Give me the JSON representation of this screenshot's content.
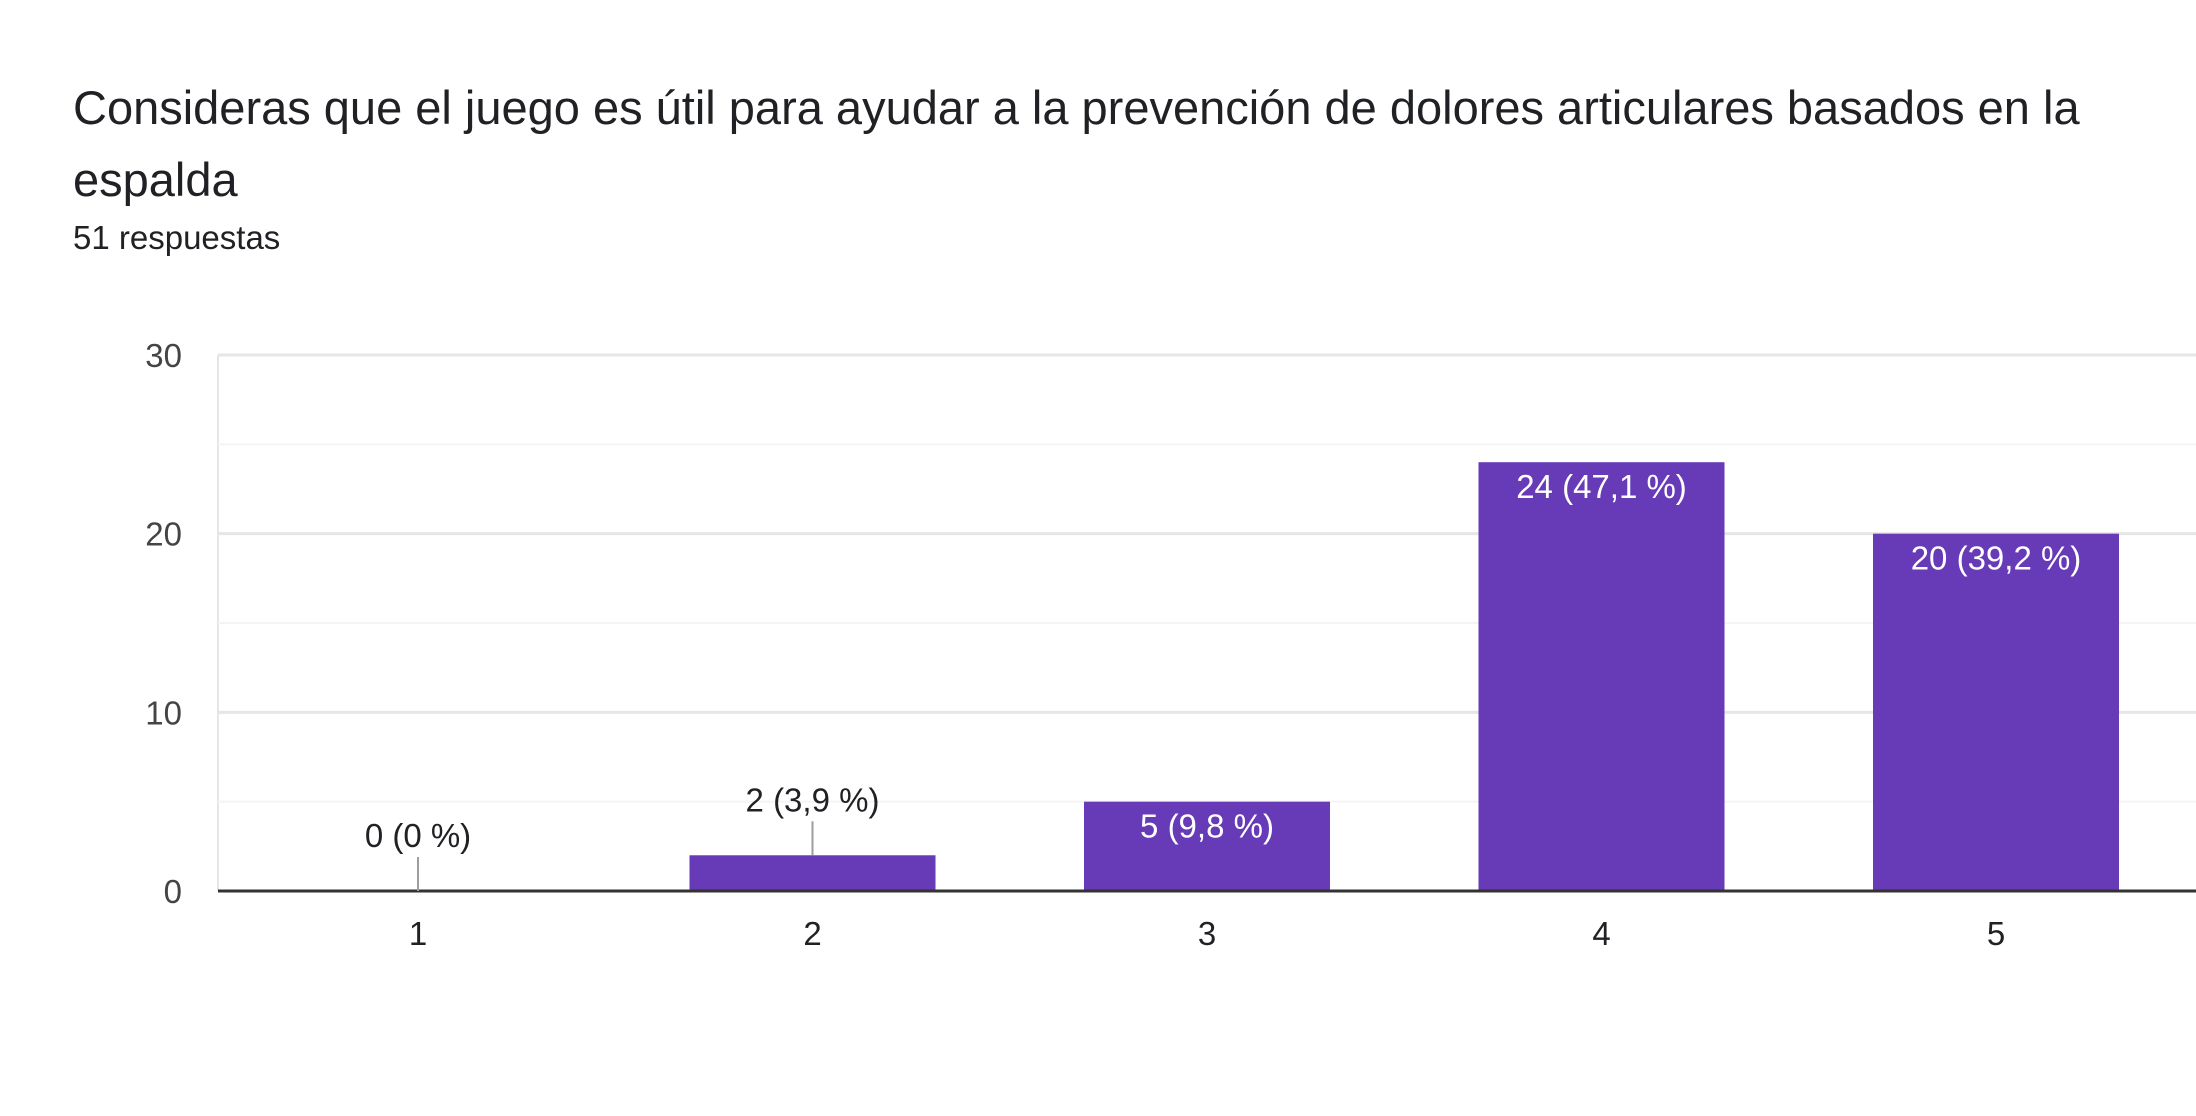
{
  "question": {
    "title": "Consideras que el juego es útil para ayudar  a la prevención de dolores articulares basados en la espalda",
    "responses": "51 respuestas"
  },
  "colors": {
    "bar": "#673ab7",
    "text": "#202124",
    "axis_text": "#444444",
    "gridline": "#e6e6e6",
    "minor_gridline": "#f4f4f4",
    "baseline": "#333333",
    "leader_line": "#9e9e9e",
    "label_inside": "#ffffff"
  },
  "chart_data": {
    "type": "bar",
    "title": "Consideras que el juego es útil para ayudar  a la prevención de dolores articulares basados en la espalda",
    "xlabel": "",
    "ylabel": "",
    "categories": [
      "1",
      "2",
      "3",
      "4",
      "5"
    ],
    "values": [
      0,
      2,
      5,
      24,
      20
    ],
    "data_labels": [
      "0 (0 %)",
      "2 (3,9 %)",
      "5 (9,8 %)",
      "24 (47,1 %)",
      "20 (39,2 %)"
    ],
    "ylim": [
      0,
      30
    ],
    "yticks": [
      0,
      10,
      20,
      30
    ],
    "ytick_labels": [
      "0",
      "10",
      "20",
      "30"
    ],
    "grid": true,
    "legend": "none"
  }
}
